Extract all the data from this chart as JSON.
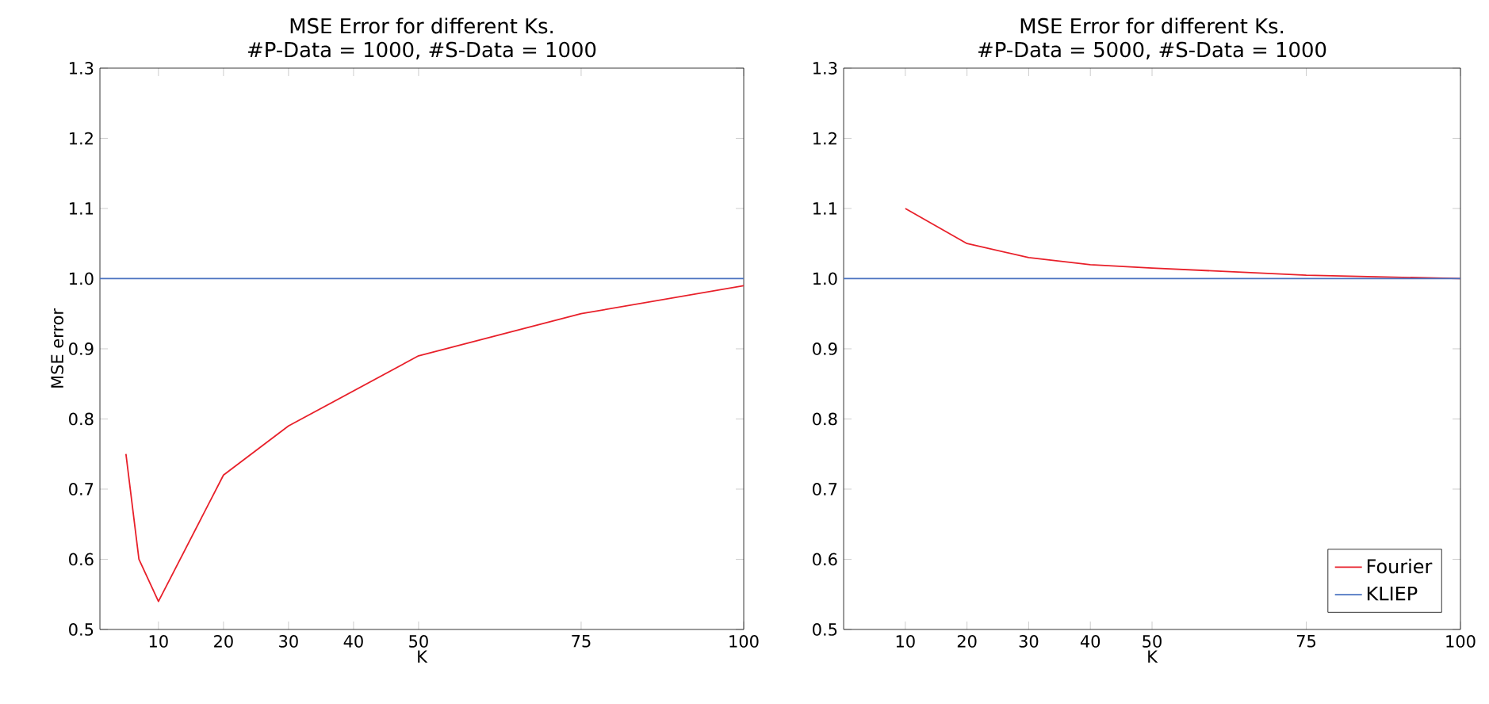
{
  "chart_data": [
    {
      "type": "line",
      "title": "MSE Error for different Ks.",
      "subtitle": "#P-Data = 1000, #S-Data = 1000",
      "xlabel": "K",
      "ylabel": "MSE error",
      "x": [
        5,
        7,
        10,
        20,
        30,
        50,
        75,
        100
      ],
      "xlim": [
        1,
        100
      ],
      "ylim": [
        0.5,
        1.3
      ],
      "xticks": [
        10,
        20,
        30,
        40,
        50,
        75,
        100
      ],
      "yticks": [
        0.5,
        0.6,
        0.7,
        0.8,
        0.9,
        {
          "value": 1.0,
          "label": "1.0"
        },
        1.1,
        1.2,
        1.3
      ],
      "marker": "none",
      "line_style": "solid",
      "series": [
        {
          "color": "#e8202a",
          "values": [
            0.75,
            0.6,
            0.54,
            0.72,
            0.79,
            0.89,
            0.95,
            0.99
          ]
        },
        {
          "color": "#4a72c0",
          "x": [
            1,
            100
          ],
          "values": [
            1.0,
            1.0
          ]
        }
      ]
    },
    {
      "type": "line",
      "title": "MSE Error for different Ks.",
      "subtitle": "#P-Data = 5000, #S-Data = 1000",
      "xlabel": "K",
      "x": [
        10,
        20,
        30,
        40,
        50,
        75,
        100
      ],
      "xlim": [
        0,
        100
      ],
      "ylim": [
        0.5,
        1.3
      ],
      "xticks": [
        10,
        20,
        30,
        40,
        50,
        75,
        100
      ],
      "yticks": [
        0.5,
        0.6,
        0.7,
        0.8,
        0.9,
        {
          "value": 1.0,
          "label": "1.0"
        },
        1.1,
        1.2,
        1.3
      ],
      "marker": "none",
      "line_style": "solid",
      "legend": "bottom right",
      "series": [
        {
          "name": "Fourier",
          "color": "#e8202a",
          "values": [
            1.1,
            1.05,
            1.03,
            1.02,
            1.015,
            1.005,
            1.0
          ]
        },
        {
          "name": "KLIEP",
          "color": "#4a72c0",
          "x": [
            0,
            100
          ],
          "values": [
            1.0,
            1.0
          ]
        }
      ]
    }
  ]
}
